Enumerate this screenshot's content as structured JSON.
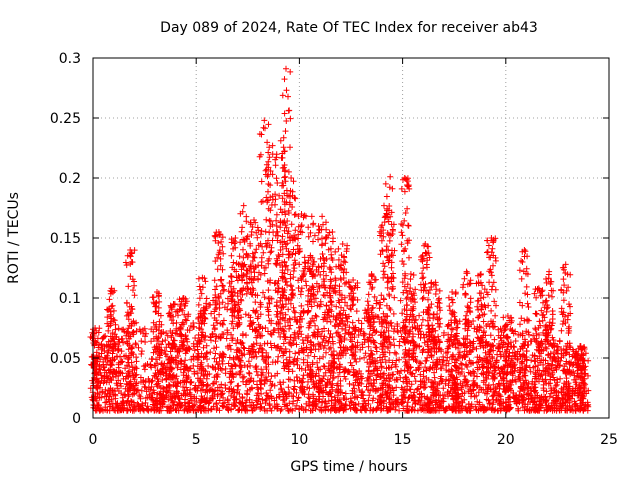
{
  "chart_data": {
    "type": "scatter",
    "title": "Day 089 of 2024, Rate Of TEC Index for receiver ab43",
    "xlabel": "GPS time / hours",
    "ylabel": "ROTI / TECUs",
    "xlim": [
      0,
      25
    ],
    "ylim": [
      0,
      0.3
    ],
    "x_ticks": [
      "0",
      "5",
      "10",
      "15",
      "20",
      "25"
    ],
    "y_ticks": [
      "0",
      "0.05",
      "0.1",
      "0.15",
      "0.2",
      "0.25",
      "0.3"
    ],
    "grid": true,
    "marker": "plus",
    "series_color": "#ff0000",
    "x_data_range": [
      0,
      24
    ],
    "envelope": {
      "hours": [
        0,
        1,
        2,
        3,
        4,
        5,
        6,
        7,
        8,
        9,
        10,
        11,
        12,
        13,
        14,
        15,
        16,
        17,
        18,
        19,
        20,
        21,
        22,
        23,
        24
      ],
      "typical_roti": [
        0.03,
        0.035,
        0.04,
        0.035,
        0.035,
        0.04,
        0.055,
        0.065,
        0.075,
        0.085,
        0.075,
        0.065,
        0.05,
        0.045,
        0.05,
        0.045,
        0.045,
        0.04,
        0.04,
        0.04,
        0.035,
        0.035,
        0.035,
        0.03,
        0.03
      ]
    },
    "peaks": [
      {
        "x": 0.1,
        "y": 0.075
      },
      {
        "x": 0.9,
        "y": 0.108
      },
      {
        "x": 1.8,
        "y": 0.14
      },
      {
        "x": 3.1,
        "y": 0.105
      },
      {
        "x": 3.9,
        "y": 0.095
      },
      {
        "x": 4.4,
        "y": 0.1
      },
      {
        "x": 5.3,
        "y": 0.117
      },
      {
        "x": 6.1,
        "y": 0.155
      },
      {
        "x": 6.9,
        "y": 0.15
      },
      {
        "x": 7.3,
        "y": 0.177
      },
      {
        "x": 7.8,
        "y": 0.165
      },
      {
        "x": 8.3,
        "y": 0.248
      },
      {
        "x": 8.7,
        "y": 0.227
      },
      {
        "x": 9.1,
        "y": 0.231
      },
      {
        "x": 9.35,
        "y": 0.291
      },
      {
        "x": 9.6,
        "y": 0.2
      },
      {
        "x": 10.1,
        "y": 0.17
      },
      {
        "x": 10.6,
        "y": 0.168
      },
      {
        "x": 11.1,
        "y": 0.168
      },
      {
        "x": 11.6,
        "y": 0.155
      },
      {
        "x": 12.1,
        "y": 0.145
      },
      {
        "x": 12.6,
        "y": 0.115
      },
      {
        "x": 13.5,
        "y": 0.12
      },
      {
        "x": 14.1,
        "y": 0.177
      },
      {
        "x": 14.4,
        "y": 0.201
      },
      {
        "x": 15.1,
        "y": 0.2
      },
      {
        "x": 15.4,
        "y": 0.12
      },
      {
        "x": 16.1,
        "y": 0.145
      },
      {
        "x": 16.6,
        "y": 0.113
      },
      {
        "x": 17.4,
        "y": 0.105
      },
      {
        "x": 18.1,
        "y": 0.122
      },
      {
        "x": 18.8,
        "y": 0.12
      },
      {
        "x": 19.3,
        "y": 0.15
      },
      {
        "x": 20.1,
        "y": 0.085
      },
      {
        "x": 20.9,
        "y": 0.14
      },
      {
        "x": 21.6,
        "y": 0.108
      },
      {
        "x": 22.1,
        "y": 0.122
      },
      {
        "x": 22.9,
        "y": 0.128
      },
      {
        "x": 23.6,
        "y": 0.06
      }
    ]
  }
}
